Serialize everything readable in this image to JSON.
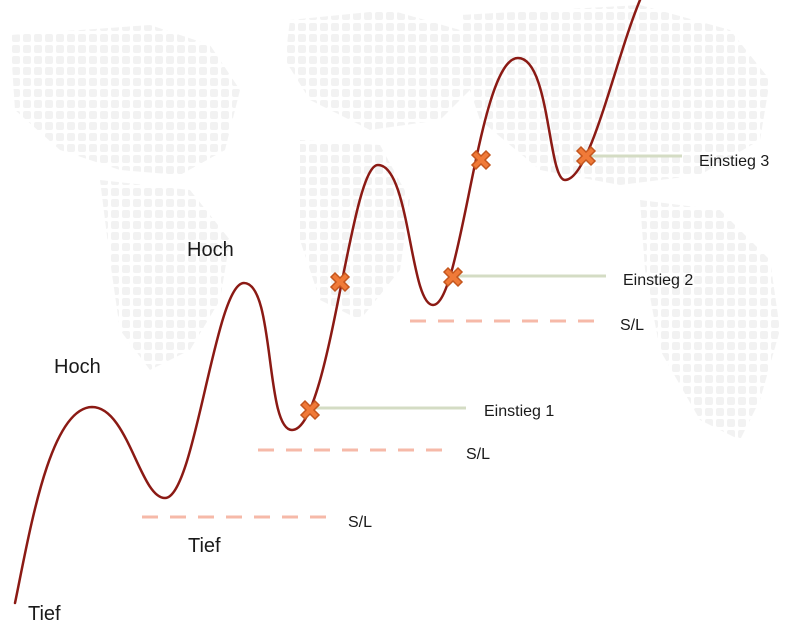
{
  "diagram": {
    "labels": {
      "tief_1": "Tief",
      "tief_2": "Tief",
      "hoch_1": "Hoch",
      "hoch_2": "Hoch",
      "einstieg_1": "Einstieg 1",
      "einstieg_2": "Einstieg 2",
      "einstieg_3": "Einstieg 3",
      "sl_1": "S/L",
      "sl_2": "S/L",
      "sl_3": "S/L"
    },
    "colors": {
      "price_line": "#8b1a14",
      "entry_line": "#d4dcc4",
      "stoploss_line": "#f6b9a8",
      "marker_fill": "#f07a38",
      "marker_stroke": "#c4561e",
      "map_dots": "#f0f0f0"
    },
    "icons": {
      "entry_marker": "cross-icon"
    }
  }
}
